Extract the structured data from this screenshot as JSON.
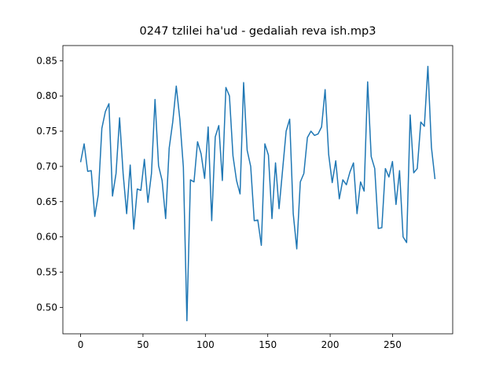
{
  "chart_data": {
    "type": "line",
    "title": "0247 tzlilei ha'ud - gedaliah reva ish.mp3",
    "x": [
      0,
      2.84,
      5.68,
      8.52,
      11.36,
      14.2,
      17.04,
      19.88,
      22.72,
      25.56,
      28.4,
      31.24,
      34.08,
      36.92,
      39.76,
      42.6,
      45.44,
      48.28,
      51.12,
      53.96,
      56.8,
      59.64,
      62.48,
      65.32,
      68.16,
      71,
      73.84,
      76.68,
      79.52,
      82.36,
      85.2,
      88.04,
      90.88,
      93.72,
      96.56,
      99.4,
      102.24,
      105.08,
      107.92,
      110.76,
      113.6,
      116.44,
      119.28,
      122.12,
      124.96,
      127.8,
      130.64,
      133.48,
      136.32,
      139.16,
      142,
      144.84,
      147.68,
      150.52,
      153.36,
      156.2,
      159.04,
      161.88,
      164.72,
      167.56,
      170.4,
      173.24,
      176.08,
      178.92,
      181.76,
      184.6,
      187.44,
      190.28,
      193.12,
      195.96,
      198.8,
      201.64,
      204.48,
      207.32,
      210.16,
      213,
      215.84,
      218.68,
      221.52,
      224.36,
      227.2,
      230.04,
      232.88,
      235.72,
      238.56,
      241.4,
      244.24,
      247.08,
      249.92,
      252.76,
      255.6,
      258.44,
      261.28,
      264.12,
      266.96,
      269.8,
      272.64,
      275.48,
      278.32,
      281.16,
      284
    ],
    "series": [
      {
        "color": "#1f77b4",
        "values": [
          0.706,
          0.732,
          0.693,
          0.694,
          0.629,
          0.66,
          0.754,
          0.778,
          0.789,
          0.658,
          0.69,
          0.769,
          0.69,
          0.633,
          0.702,
          0.611,
          0.668,
          0.666,
          0.71,
          0.649,
          0.69,
          0.795,
          0.701,
          0.68,
          0.626,
          0.726,
          0.763,
          0.814,
          0.767,
          0.699,
          0.481,
          0.681,
          0.678,
          0.735,
          0.718,
          0.683,
          0.756,
          0.623,
          0.742,
          0.758,
          0.68,
          0.812,
          0.8,
          0.715,
          0.68,
          0.661,
          0.819,
          0.723,
          0.7,
          0.623,
          0.624,
          0.588,
          0.732,
          0.716,
          0.626,
          0.705,
          0.64,
          0.695,
          0.75,
          0.767,
          0.633,
          0.583,
          0.678,
          0.69,
          0.741,
          0.75,
          0.744,
          0.746,
          0.756,
          0.809,
          0.717,
          0.677,
          0.708,
          0.654,
          0.681,
          0.674,
          0.692,
          0.705,
          0.633,
          0.678,
          0.665,
          0.82,
          0.714,
          0.697,
          0.612,
          0.613,
          0.697,
          0.685,
          0.707,
          0.646,
          0.694,
          0.6,
          0.592,
          0.773,
          0.691,
          0.697,
          0.763,
          0.757,
          0.842,
          0.727,
          0.682
        ]
      }
    ],
    "xlim": [
      -14.2,
      298.2
    ],
    "ylim": [
      0.4625,
      0.8715
    ],
    "xticks": [
      0,
      50,
      100,
      150,
      200,
      250
    ],
    "yticks": [
      {
        "value": 0.5,
        "label": "0.50"
      },
      0.55,
      {
        "value": 0.6,
        "label": "0.60"
      },
      0.65,
      {
        "value": 0.7,
        "label": "0.70"
      },
      0.75,
      {
        "value": 0.8,
        "label": "0.80"
      },
      0.85
    ]
  }
}
